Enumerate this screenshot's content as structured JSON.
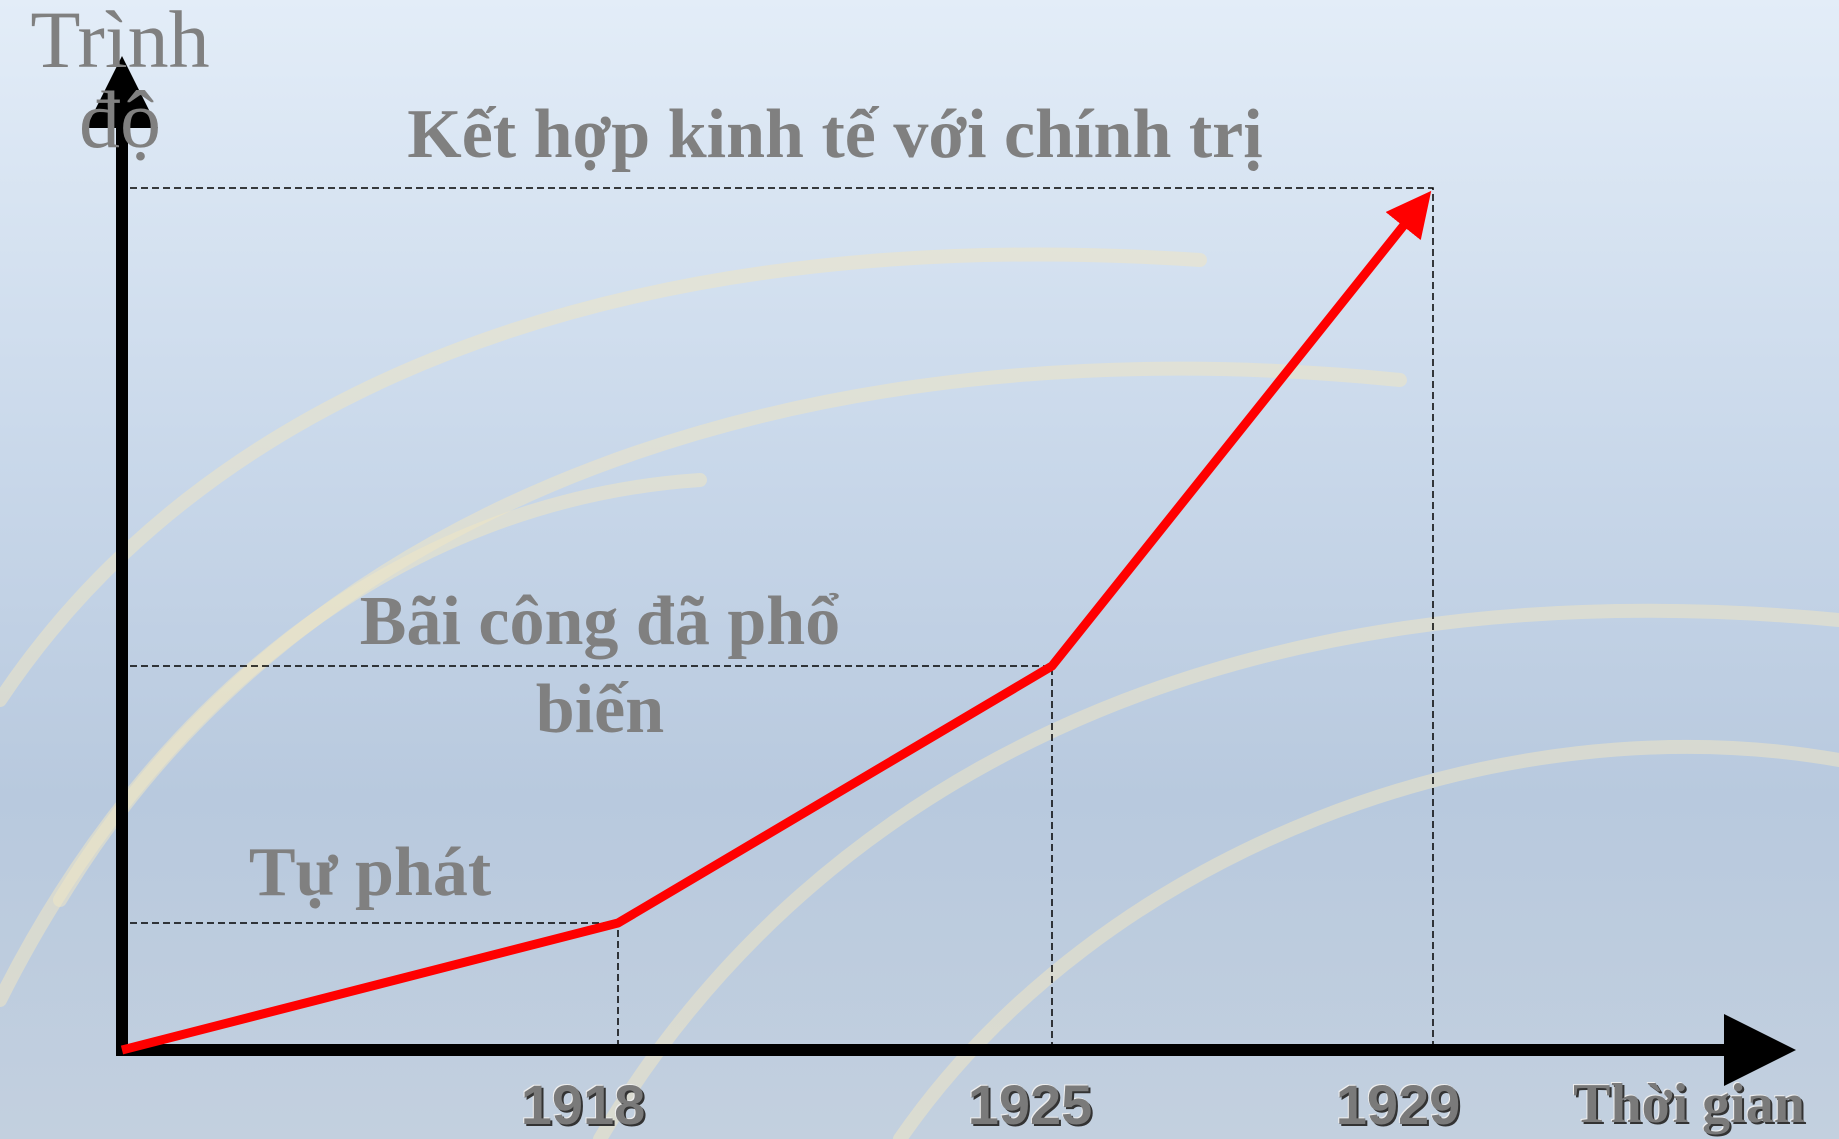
{
  "y_axis_label": "Trình độ",
  "x_axis_label": "Thời gian",
  "milestones": [
    {
      "year": "1918",
      "label": "Tự phát"
    },
    {
      "year": "1925",
      "label": "Bãi công đã phổ biến"
    },
    {
      "year": "1929",
      "label": "Kết hợp kinh tế với chính trị"
    }
  ]
}
